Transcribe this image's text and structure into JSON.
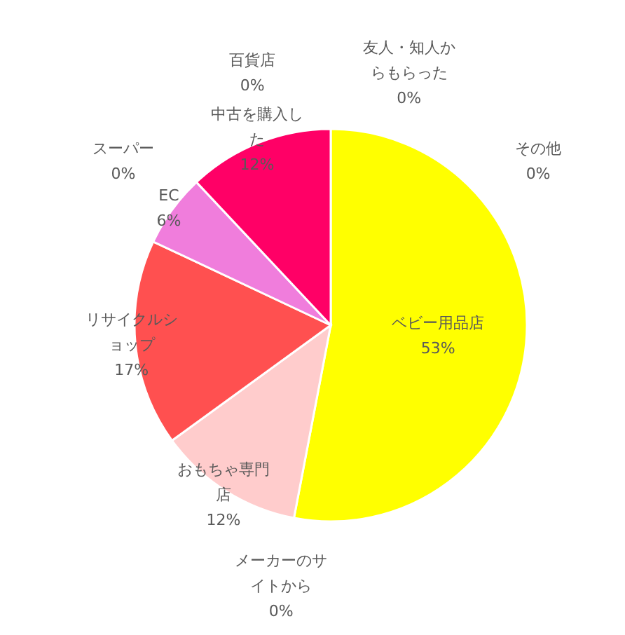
{
  "chart_data": {
    "type": "pie",
    "categories": [
      "ベビー用品店",
      "メーカーのサイトから",
      "おもちゃ専門店",
      "リサイクルショップ",
      "EC",
      "中古を購入した",
      "スーパー",
      "百貨店",
      "友人・知人からもらった",
      "その他"
    ],
    "values": [
      53,
      0,
      12,
      17,
      6,
      12,
      0,
      0,
      0,
      0
    ],
    "colors": [
      "#ffff00",
      null,
      "#ffcccc",
      "#ff5050",
      "#f07ddc",
      "#ff0066",
      null,
      null,
      null,
      null
    ],
    "value_labels": [
      "53%",
      "0%",
      "12%",
      "17%",
      "6%",
      "12%",
      "0%",
      "0%",
      "0%",
      "0%"
    ]
  }
}
